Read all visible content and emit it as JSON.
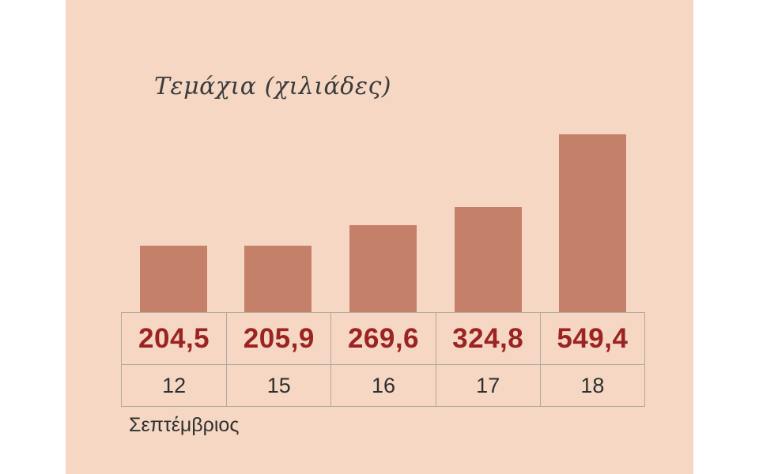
{
  "panel": {
    "background": "#f5d7c3"
  },
  "chart_data": {
    "type": "bar",
    "title": "Τεμάχια (χιλιάδες)",
    "categories": [
      "12",
      "15",
      "16",
      "17",
      "18"
    ],
    "values": [
      204.5,
      205.9,
      269.6,
      324.8,
      549.4
    ],
    "value_labels": [
      "204,5",
      "205,9",
      "269,6",
      "324,8",
      "549,4"
    ],
    "xlabel": "Σεπτέμβριος",
    "ylabel": "",
    "ylim": [
      0,
      560
    ],
    "grid": false,
    "legend": false,
    "bar_color": "#c5806a",
    "value_color": "#9b2423",
    "table_border_color": "#b2a89f"
  }
}
